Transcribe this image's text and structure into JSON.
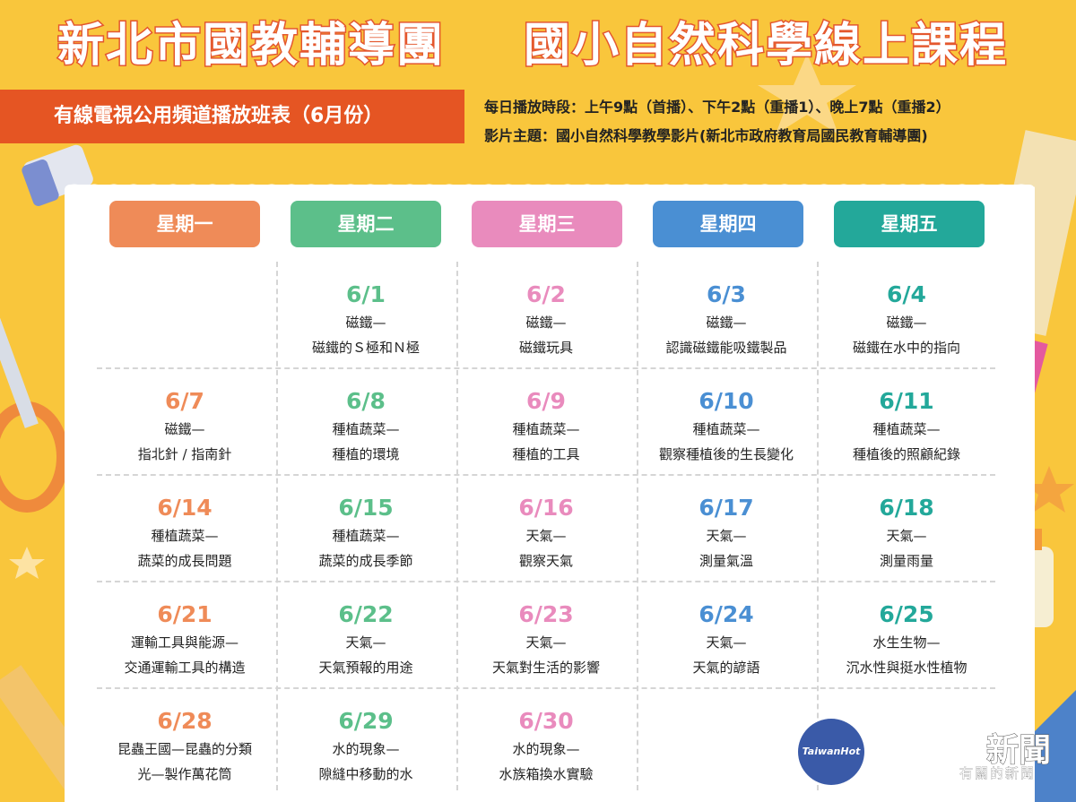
{
  "header": {
    "title_left": "新北市國教輔導團",
    "title_right": "國小自然科學線上課程",
    "banner": "有線電視公用頻道播放班表（6月份）",
    "schedule_info": "每日播放時段：上午9點（首播）、下午2點（重播1）、晚上7點（重播2）",
    "topic_info": "影片主題：國小自然科學教學影片(新北市政府教育局國民教育輔導團)"
  },
  "colors": {
    "mon": "#ef8b58",
    "tue": "#5cbf8a",
    "wed": "#e98bbd",
    "thu": "#4a8fd3",
    "fri": "#23a89a"
  },
  "days": [
    "星期一",
    "星期二",
    "星期三",
    "星期四",
    "星期五"
  ],
  "calendar": [
    [
      null,
      {
        "date": "6/1",
        "line1": "磁鐵—",
        "line2": "磁鐵的Ｓ極和Ｎ極"
      },
      {
        "date": "6/2",
        "line1": "磁鐵—",
        "line2": "磁鐵玩具"
      },
      {
        "date": "6/3",
        "line1": "磁鐵—",
        "line2": "認識磁鐵能吸鐵製品"
      },
      {
        "date": "6/4",
        "line1": "磁鐵—",
        "line2": "磁鐵在水中的指向"
      }
    ],
    [
      {
        "date": "6/7",
        "line1": "磁鐵—",
        "line2": "指北針 / 指南針"
      },
      {
        "date": "6/8",
        "line1": "種植蔬菜—",
        "line2": "種植的環境"
      },
      {
        "date": "6/9",
        "line1": "種植蔬菜—",
        "line2": "種植的工具"
      },
      {
        "date": "6/10",
        "line1": "種植蔬菜—",
        "line2": "觀察種植後的生長變化"
      },
      {
        "date": "6/11",
        "line1": "種植蔬菜—",
        "line2": "種植後的照顧紀錄"
      }
    ],
    [
      {
        "date": "6/14",
        "line1": "種植蔬菜—",
        "line2": "蔬菜的成長問題"
      },
      {
        "date": "6/15",
        "line1": "種植蔬菜—",
        "line2": "蔬菜的成長季節"
      },
      {
        "date": "6/16",
        "line1": "天氣—",
        "line2": "觀察天氣"
      },
      {
        "date": "6/17",
        "line1": "天氣—",
        "line2": "測量氣溫"
      },
      {
        "date": "6/18",
        "line1": "天氣—",
        "line2": "測量雨量"
      }
    ],
    [
      {
        "date": "6/21",
        "line1": "運輸工具與能源—",
        "line2": "交通運輸工具的構造"
      },
      {
        "date": "6/22",
        "line1": "天氣—",
        "line2": "天氣預報的用途"
      },
      {
        "date": "6/23",
        "line1": "天氣—",
        "line2": "天氣對生活的影響"
      },
      {
        "date": "6/24",
        "line1": "天氣—",
        "line2": "天氣的諺語"
      },
      {
        "date": "6/25",
        "line1": "水生生物—",
        "line2": "沉水性與挺水性植物"
      }
    ],
    [
      {
        "date": "6/28",
        "line1": "昆蟲王國—昆蟲的分類",
        "line2": "光—製作萬花筒"
      },
      {
        "date": "6/29",
        "line1": "水的現象—",
        "line2": "隙縫中移動的水"
      },
      {
        "date": "6/30",
        "line1": "水的現象—",
        "line2": "水族箱換水實驗"
      },
      null,
      null
    ]
  ],
  "watermark": {
    "circle": "TaiwanHot",
    "main": "新聞",
    "sub": "有關的新聞"
  }
}
